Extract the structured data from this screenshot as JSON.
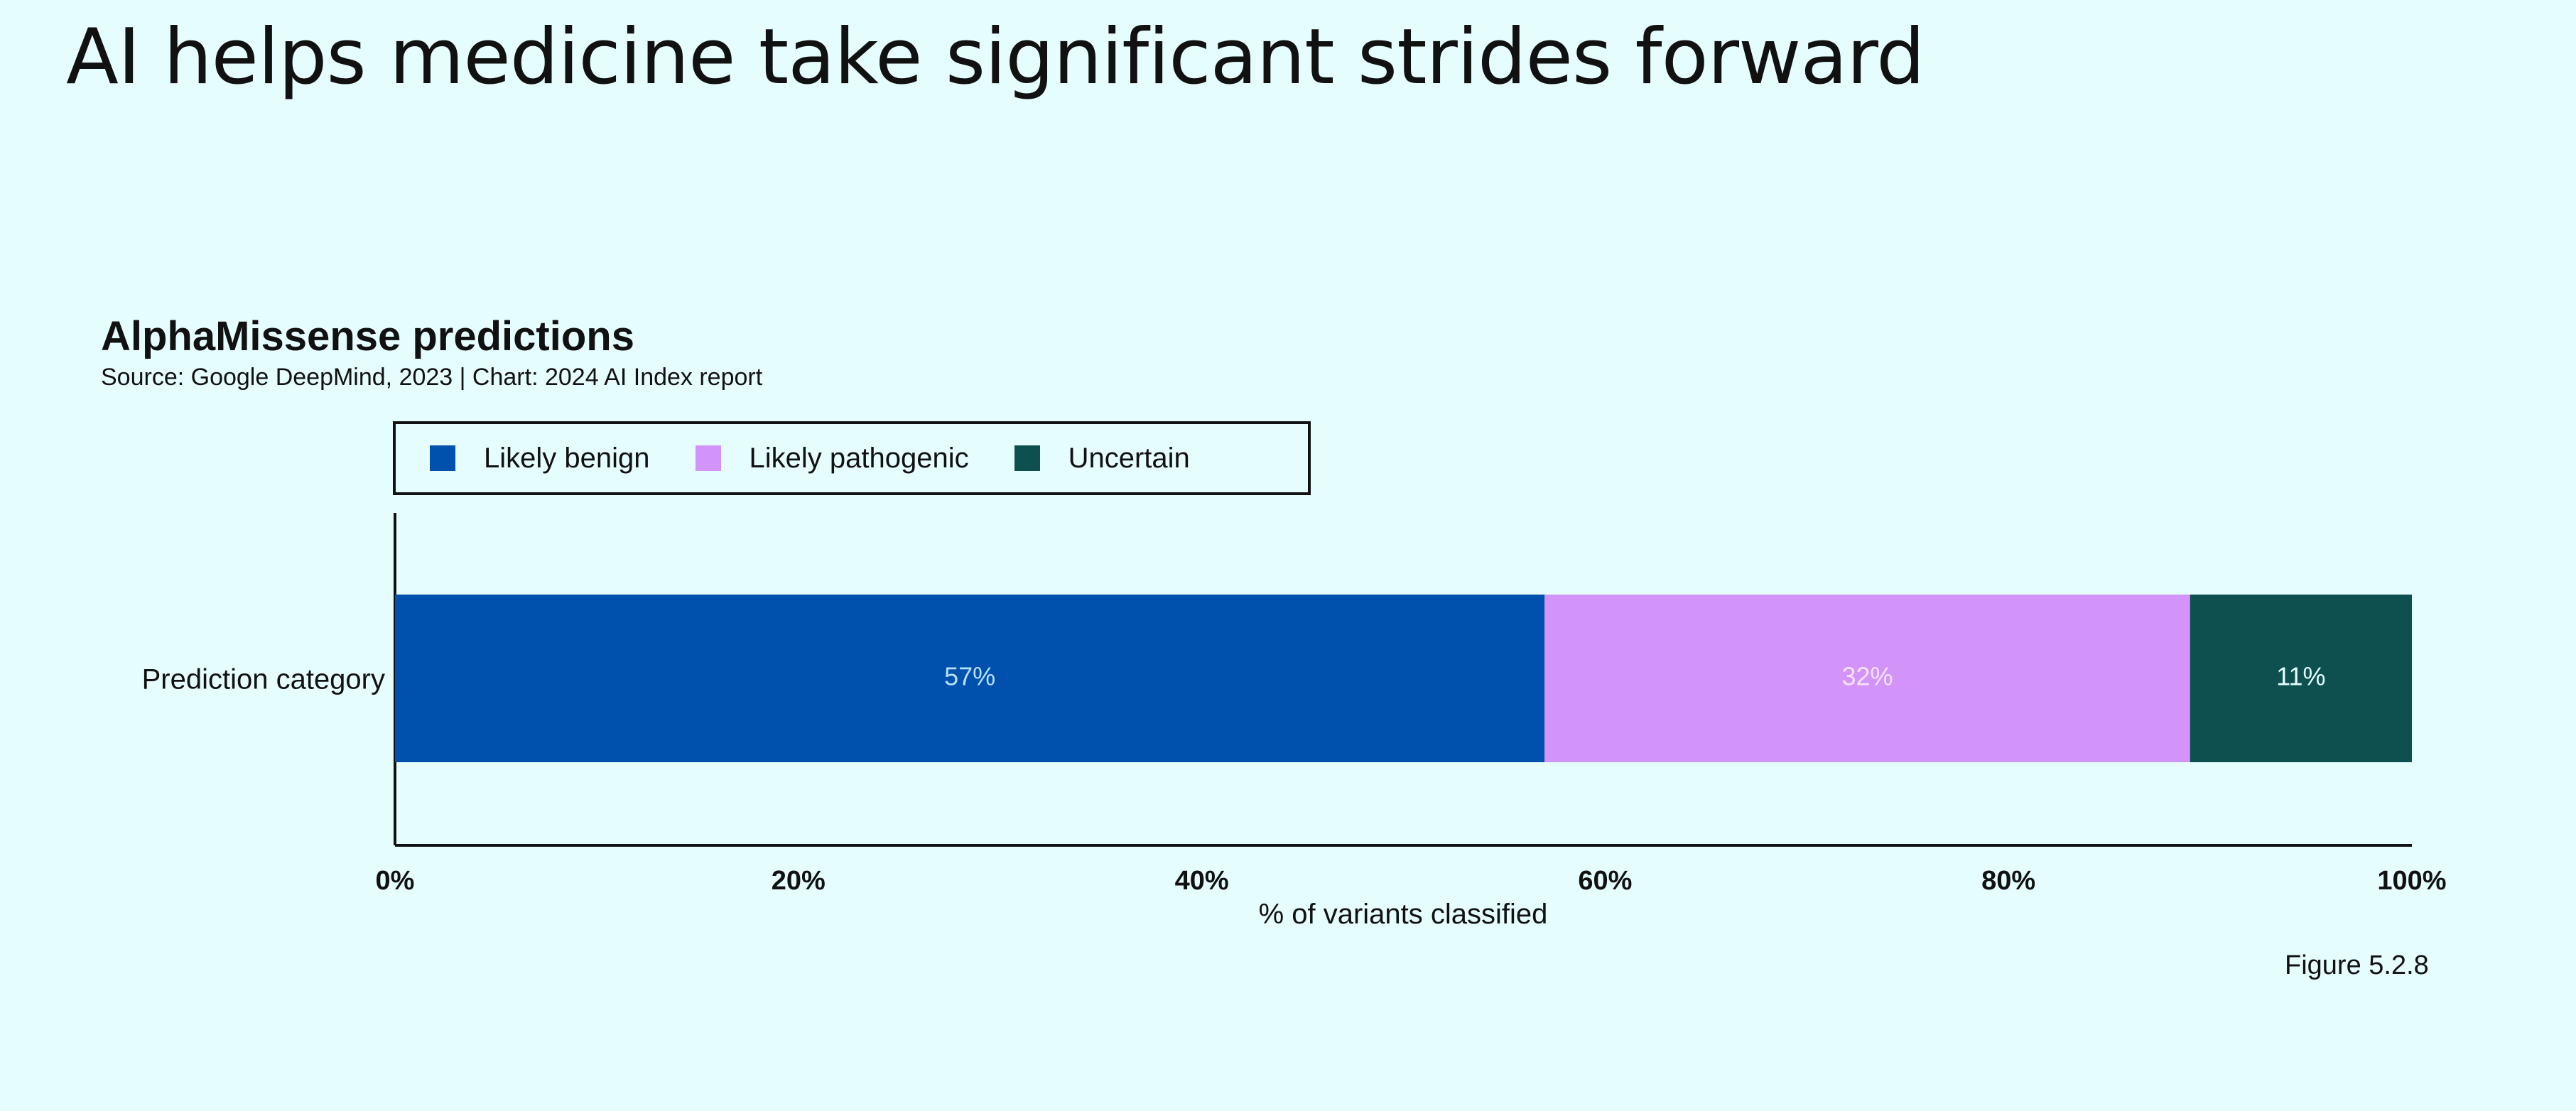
{
  "page": {
    "title": "AI helps medicine take significant strides forward",
    "figure_label": "Figure 5.2.8"
  },
  "chart_data": {
    "type": "bar",
    "orientation": "horizontal",
    "stacked": true,
    "title": "AlphaMissense predictions",
    "subtitle": "Source: Google DeepMind, 2023 | Chart: 2024 AI Index report",
    "categories": [
      "Prediction category"
    ],
    "series": [
      {
        "name": "Likely benign",
        "values": [
          57
        ],
        "label": "57%",
        "color": "#0051ad",
        "label_color": "#b8e0ff"
      },
      {
        "name": "Likely pathogenic",
        "values": [
          32
        ],
        "label": "32%",
        "color": "#d394fa",
        "label_color": "#f3e2ff"
      },
      {
        "name": "Uncertain",
        "values": [
          11
        ],
        "label": "11%",
        "color": "#0e4f4f",
        "label_color": "#e6fdfe"
      }
    ],
    "xlabel": "% of variants classified",
    "ylabel": "",
    "xlim": [
      0,
      100
    ],
    "xticks": [
      0,
      20,
      40,
      60,
      80,
      100
    ],
    "xtick_labels": [
      "0%",
      "20%",
      "40%",
      "60%",
      "80%",
      "100%"
    ],
    "grid": false,
    "legend_position": "top-left"
  }
}
